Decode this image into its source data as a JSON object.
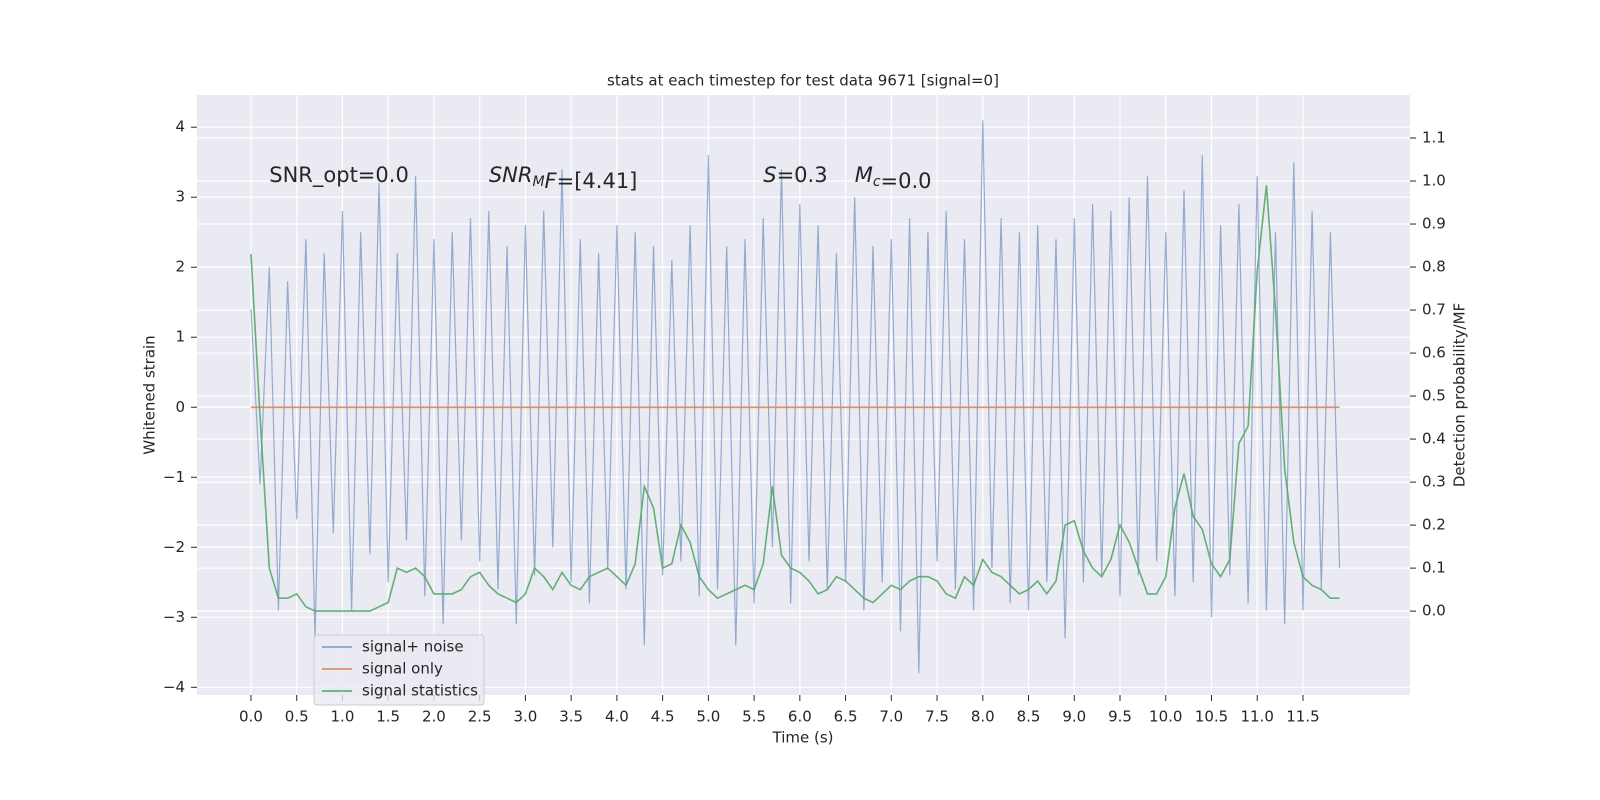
{
  "chart_data": {
    "type": "line",
    "title": "stats at each timestep for test data 9671 [signal=0]",
    "xlabel": "Time (s)",
    "ylabel": "Whitened strain",
    "y2label": "Detection probability/MF",
    "annotations": [
      {
        "text": "SNR_opt=0.0",
        "x": 0.2,
        "y": 3.3
      },
      {
        "italic": "SNR",
        "sub": "M",
        "italic2": "F",
        "rest": "=[4.41]",
        "x": 2.6,
        "y": 3.3
      },
      {
        "italic": "S",
        "rest": "=0.3",
        "x": 5.6,
        "y": 3.3
      },
      {
        "italic": "M",
        "sub": "c",
        "rest": "=0.0",
        "x": 6.6,
        "y": 3.3
      }
    ],
    "x": [
      0,
      0.1,
      0.2,
      0.3,
      0.4,
      0.5,
      0.6,
      0.7,
      0.8,
      0.9,
      1,
      1.1,
      1.2,
      1.3,
      1.4,
      1.5,
      1.6,
      1.7,
      1.8,
      1.9,
      2,
      2.1,
      2.2,
      2.3,
      2.4,
      2.5,
      2.6,
      2.7,
      2.8,
      2.9,
      3,
      3.1,
      3.2,
      3.3,
      3.4,
      3.5,
      3.6,
      3.7,
      3.8,
      3.9,
      4,
      4.1,
      4.2,
      4.3,
      4.4,
      4.5,
      4.6,
      4.7,
      4.8,
      4.9,
      5,
      5.1,
      5.2,
      5.3,
      5.4,
      5.5,
      5.6,
      5.7,
      5.8,
      5.9,
      6,
      6.1,
      6.2,
      6.3,
      6.4,
      6.5,
      6.6,
      6.7,
      6.8,
      6.9,
      7,
      7.1,
      7.2,
      7.3,
      7.4,
      7.5,
      7.6,
      7.7,
      7.8,
      7.9,
      8,
      8.1,
      8.2,
      8.3,
      8.4,
      8.5,
      8.6,
      8.7,
      8.8,
      8.9,
      9,
      9.1,
      9.2,
      9.3,
      9.4,
      9.5,
      9.6,
      9.7,
      9.8,
      9.9,
      10,
      10.1,
      10.2,
      10.3,
      10.4,
      10.5,
      10.6,
      10.7,
      10.8,
      10.9,
      11,
      11.1,
      11.2,
      11.3,
      11.4,
      11.5,
      11.6,
      11.7,
      11.8,
      11.9
    ],
    "series": [
      {
        "name": "signal+ noise",
        "color": "#4c72b0",
        "values": [
          1.4,
          -1.1,
          2.0,
          -2.9,
          1.8,
          -1.6,
          2.4,
          -3.3,
          2.2,
          -1.8,
          2.8,
          -2.9,
          2.5,
          -2.1,
          3.2,
          -2.5,
          2.2,
          -1.9,
          3.3,
          -2.7,
          2.4,
          -3.1,
          2.5,
          -1.9,
          2.7,
          -2.2,
          2.8,
          -2.6,
          2.3,
          -3.1,
          2.6,
          -2.4,
          2.8,
          -2.0,
          3.4,
          -2.5,
          2.4,
          -2.8,
          2.2,
          -2.3,
          2.6,
          -2.6,
          2.5,
          -3.4,
          2.3,
          -2.4,
          2.1,
          -2.2,
          2.6,
          -2.7,
          3.6,
          -2.6,
          2.3,
          -3.4,
          2.4,
          -2.8,
          2.7,
          -2.0,
          3.4,
          -2.8,
          2.9,
          -2.2,
          2.6,
          -2.6,
          2.2,
          -2.5,
          3.0,
          -2.9,
          2.3,
          -2.5,
          2.4,
          -3.2,
          2.7,
          -3.8,
          2.5,
          -2.2,
          2.8,
          -2.6,
          2.4,
          -2.9,
          4.1,
          -2.3,
          2.7,
          -2.8,
          2.5,
          -2.9,
          2.6,
          -2.5,
          2.4,
          -3.3,
          2.7,
          -2.5,
          2.9,
          -2.4,
          2.8,
          -2.7,
          3.0,
          -2.4,
          3.3,
          -2.2,
          2.5,
          -2.7,
          3.1,
          -2.5,
          3.6,
          -3.0,
          2.6,
          -2.4,
          2.9,
          -2.8,
          3.3,
          -2.9,
          2.5,
          -3.1,
          3.5,
          -2.9,
          2.8,
          -2.6,
          2.5,
          -2.3
        ]
      },
      {
        "name": "signal only",
        "color": "#dd8452",
        "values": [
          0,
          0,
          0,
          0,
          0,
          0,
          0,
          0,
          0,
          0,
          0,
          0,
          0,
          0,
          0,
          0,
          0,
          0,
          0,
          0,
          0,
          0,
          0,
          0,
          0,
          0,
          0,
          0,
          0,
          0,
          0,
          0,
          0,
          0,
          0,
          0,
          0,
          0,
          0,
          0,
          0,
          0,
          0,
          0,
          0,
          0,
          0,
          0,
          0,
          0,
          0,
          0,
          0,
          0,
          0,
          0,
          0,
          0,
          0,
          0,
          0,
          0,
          0,
          0,
          0,
          0,
          0,
          0,
          0,
          0,
          0,
          0,
          0,
          0,
          0,
          0,
          0,
          0,
          0,
          0,
          0,
          0,
          0,
          0,
          0,
          0,
          0,
          0,
          0,
          0,
          0,
          0,
          0,
          0,
          0,
          0,
          0,
          0,
          0,
          0,
          0,
          0,
          0,
          0,
          0,
          0,
          0,
          0,
          0,
          0,
          0,
          0,
          0,
          0,
          0,
          0,
          0,
          0,
          0,
          0
        ]
      },
      {
        "name": "signal statistics",
        "color": "#55a868",
        "axis": "y2",
        "values": [
          0.83,
          0.45,
          0.1,
          0.03,
          0.03,
          0.04,
          0.01,
          0.0,
          0.0,
          0.0,
          0.0,
          0.0,
          0.0,
          0.0,
          0.01,
          0.02,
          0.1,
          0.09,
          0.1,
          0.08,
          0.04,
          0.04,
          0.04,
          0.05,
          0.08,
          0.09,
          0.06,
          0.04,
          0.03,
          0.02,
          0.04,
          0.1,
          0.08,
          0.05,
          0.09,
          0.06,
          0.05,
          0.08,
          0.09,
          0.1,
          0.08,
          0.06,
          0.11,
          0.29,
          0.24,
          0.1,
          0.11,
          0.2,
          0.16,
          0.08,
          0.05,
          0.03,
          0.04,
          0.05,
          0.06,
          0.05,
          0.11,
          0.29,
          0.13,
          0.1,
          0.09,
          0.07,
          0.04,
          0.05,
          0.08,
          0.07,
          0.05,
          0.03,
          0.02,
          0.04,
          0.06,
          0.05,
          0.07,
          0.08,
          0.08,
          0.07,
          0.04,
          0.03,
          0.08,
          0.06,
          0.12,
          0.09,
          0.08,
          0.06,
          0.04,
          0.05,
          0.07,
          0.04,
          0.07,
          0.2,
          0.21,
          0.14,
          0.1,
          0.08,
          0.12,
          0.2,
          0.16,
          0.1,
          0.04,
          0.04,
          0.08,
          0.24,
          0.32,
          0.22,
          0.19,
          0.11,
          0.08,
          0.12,
          0.39,
          0.43,
          0.79,
          0.99,
          0.7,
          0.33,
          0.16,
          0.08,
          0.06,
          0.05,
          0.03,
          0.03
        ]
      }
    ],
    "xlim": [
      -0.59,
      12.67
    ],
    "ylim": [
      -4.11,
      4.46
    ],
    "y2lim": [
      -0.195,
      1.2
    ],
    "xticks": [
      {
        "value": 0,
        "label": "0.0"
      },
      {
        "value": 0.5,
        "label": "0.5"
      },
      {
        "value": 1,
        "label": "1.0"
      },
      {
        "value": 1.5,
        "label": "1.5"
      },
      {
        "value": 2,
        "label": "2.0"
      },
      {
        "value": 2.5,
        "label": "2.5"
      },
      {
        "value": 3,
        "label": "3.0"
      },
      {
        "value": 3.5,
        "label": "3.5"
      },
      {
        "value": 4,
        "label": "4.0"
      },
      {
        "value": 4.5,
        "label": "4.5"
      },
      {
        "value": 5,
        "label": "5.0"
      },
      {
        "value": 5.5,
        "label": "5.5"
      },
      {
        "value": 6,
        "label": "6.0"
      },
      {
        "value": 6.5,
        "label": "6.5"
      },
      {
        "value": 7,
        "label": "7.0"
      },
      {
        "value": 7.5,
        "label": "7.5"
      },
      {
        "value": 8,
        "label": "8.0"
      },
      {
        "value": 8.5,
        "label": "8.5"
      },
      {
        "value": 9,
        "label": "9.0"
      },
      {
        "value": 9.5,
        "label": "9.5"
      },
      {
        "value": 10,
        "label": "10.0"
      },
      {
        "value": 10.5,
        "label": "10.5"
      },
      {
        "value": 11,
        "label": "11.0"
      },
      {
        "value": 11.5,
        "label": "11.5"
      }
    ],
    "yticks": [
      {
        "value": -4,
        "label": "−4"
      },
      {
        "value": -3,
        "label": "−3"
      },
      {
        "value": -2,
        "label": "−2"
      },
      {
        "value": -1,
        "label": "−1"
      },
      0,
      1,
      2,
      3,
      4
    ],
    "y2ticks": [
      {
        "value": 0,
        "label": "0.0"
      },
      {
        "value": 0.1,
        "label": "0.1"
      },
      {
        "value": 0.2,
        "label": "0.2"
      },
      {
        "value": 0.3,
        "label": "0.3"
      },
      {
        "value": 0.4,
        "label": "0.4"
      },
      {
        "value": 0.5,
        "label": "0.5"
      },
      {
        "value": 0.6,
        "label": "0.6"
      },
      {
        "value": 0.7,
        "label": "0.7"
      },
      {
        "value": 0.8,
        "label": "0.8"
      },
      {
        "value": 0.9,
        "label": "0.9"
      },
      {
        "value": 1,
        "label": "1.0"
      },
      {
        "value": 1.1,
        "label": "1.1"
      }
    ],
    "grid": true,
    "legend": "lower left"
  }
}
